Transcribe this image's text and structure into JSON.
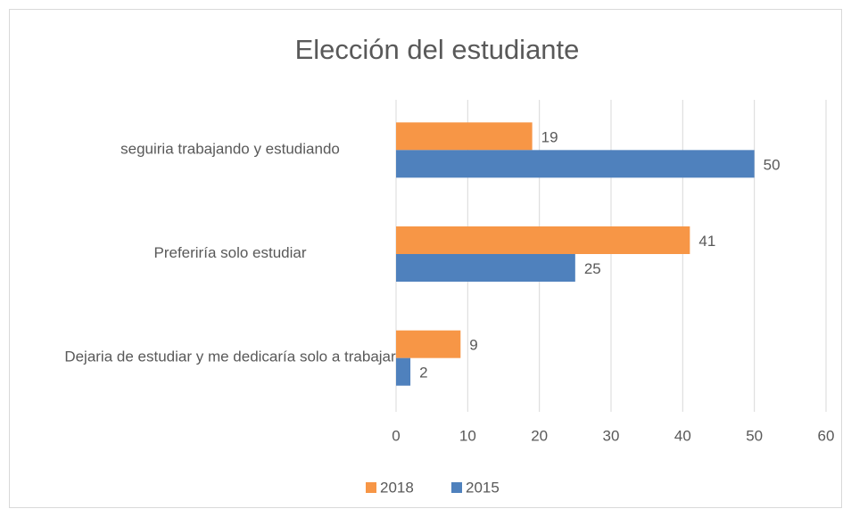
{
  "chart_data": {
    "type": "bar",
    "orientation": "horizontal",
    "title": "Elección del estudiante",
    "categories": [
      "seguiria trabajando y estudiando",
      "Preferiría solo estudiar",
      "Dejaria de estudiar y me dedicaría solo a trabajar"
    ],
    "series": [
      {
        "name": "2018",
        "color": "#f79646",
        "values": [
          19,
          41,
          9
        ]
      },
      {
        "name": "2015",
        "color": "#4f81bd",
        "values": [
          50,
          25,
          2
        ]
      }
    ],
    "xlim": [
      0,
      60
    ],
    "xticks": [
      0,
      10,
      20,
      30,
      40,
      50,
      60
    ],
    "grid": true,
    "legend": "bottom"
  }
}
